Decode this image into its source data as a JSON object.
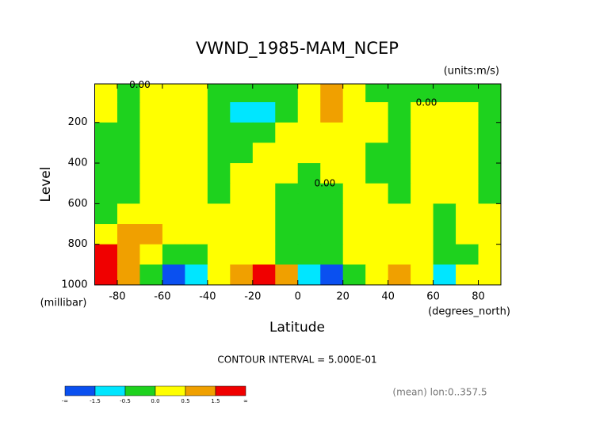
{
  "chart_data": {
    "type": "contour",
    "title": "VWND_1985-MAM_NCEP",
    "units": "(units:m/s)",
    "ylabel": "Level",
    "yunits": "(millibar)",
    "xlabel": "Latitude",
    "xunits": "(degrees_north)",
    "footer": "CONTOUR INTERVAL = 5.000E-01",
    "note": "(mean) lon:0..357.5",
    "x": [
      -85,
      -75,
      -65,
      -55,
      -45,
      -35,
      -25,
      -15,
      -5,
      5,
      15,
      25,
      35,
      45,
      55,
      65,
      75,
      85
    ],
    "levels": [
      50,
      150,
      250,
      350,
      450,
      550,
      650,
      750,
      850,
      950
    ],
    "values": [
      [
        0.2,
        -0.2,
        0.1,
        0.2,
        0.2,
        -0.2,
        -0.2,
        -0.3,
        -0.2,
        0.2,
        0.6,
        0.1,
        -0.2,
        -0.2,
        -0.2,
        -0.2,
        -0.2,
        -0.2
      ],
      [
        0.1,
        -0.2,
        0.2,
        0.2,
        0.2,
        -0.2,
        -0.6,
        -0.7,
        -0.2,
        0.3,
        0.8,
        0.2,
        0.1,
        -0.2,
        0.1,
        0.2,
        0.1,
        -0.1
      ],
      [
        -0.2,
        -0.2,
        0.2,
        0.3,
        0.3,
        -0.2,
        -0.3,
        -0.2,
        0.2,
        0.2,
        0.3,
        0.2,
        0.1,
        -0.2,
        0.2,
        0.2,
        0.2,
        -0.1
      ],
      [
        -0.2,
        -0.2,
        0.2,
        0.3,
        0.3,
        -0.2,
        -0.3,
        0.1,
        0.2,
        0.2,
        0.2,
        0.2,
        -0.1,
        -0.2,
        0.2,
        0.3,
        0.2,
        -0.1
      ],
      [
        -0.2,
        -0.2,
        0.2,
        0.3,
        0.3,
        -0.2,
        0.1,
        0.2,
        0.1,
        -0.1,
        0.1,
        0.2,
        -0.1,
        -0.2,
        0.1,
        0.3,
        0.2,
        -0.1
      ],
      [
        -0.2,
        -0.2,
        0.1,
        0.3,
        0.3,
        -0.1,
        0.1,
        0.2,
        -0.2,
        -0.2,
        -0.2,
        0.1,
        0.1,
        -0.1,
        0.1,
        0.2,
        0.2,
        -0.2
      ],
      [
        -0.2,
        0.1,
        0.3,
        0.3,
        0.2,
        0.1,
        0.2,
        0.1,
        -0.2,
        -0.3,
        -0.2,
        0.1,
        0.2,
        0.2,
        0.2,
        -0.1,
        0.2,
        0.1
      ],
      [
        0.2,
        0.8,
        0.6,
        0.2,
        0.2,
        0.1,
        0.2,
        0.1,
        -0.2,
        -0.2,
        -0.1,
        0.1,
        0.2,
        0.2,
        0.2,
        -0.2,
        0.2,
        0.2
      ],
      [
        1.8,
        0.8,
        0.2,
        -0.2,
        -0.1,
        0.1,
        0.3,
        0.4,
        -0.1,
        -0.2,
        -0.3,
        0.2,
        0.2,
        0.2,
        0.2,
        -0.2,
        -0.2,
        0.1
      ],
      [
        2.2,
        1.0,
        -0.3,
        -1.8,
        -0.8,
        0.1,
        0.8,
        1.8,
        0.5,
        -0.8,
        -1.8,
        -0.4,
        0.2,
        0.8,
        0.2,
        -0.8,
        0.2,
        0.1
      ]
    ],
    "xlim": [
      -90,
      90
    ],
    "ylim": [
      1000,
      10
    ],
    "xticks": [
      -80,
      -60,
      -40,
      -20,
      0,
      20,
      40,
      60,
      80
    ],
    "yticks": [
      200,
      400,
      600,
      800,
      1000
    ],
    "shade_levels": [
      -1.5,
      -0.5,
      {
        "value": 0,
        "label": "0.0"
      },
      0.5,
      1.5
    ],
    "shade_ends": [
      "-∞",
      "∞"
    ],
    "colors": [
      "#0a50f0",
      "#00e6ff",
      "#1ed21e",
      "#ffff00",
      "#f0a000",
      "#f00000"
    ],
    "annotations": [
      {
        "text": "0.00",
        "x": -70,
        "y": 15
      },
      {
        "text": "0.00",
        "x": 57,
        "y": 104
      },
      {
        "text": "0.00",
        "x": 12,
        "y": 501
      }
    ]
  }
}
